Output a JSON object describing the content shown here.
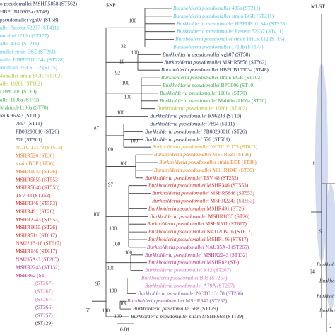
{
  "panels": {
    "snp": "SNP",
    "mlst": "MLST"
  },
  "scale_bar": "0.01",
  "left_leaves": [
    {
      "text": "o pseudomallei MSHR5858 (ST562)",
      "color": "#1f2d5a"
    },
    {
      "text": "HBPUB10303a (ST48)",
      "color": "#1f2d5a"
    },
    {
      "text": "pseudomallei vgh07 (ST58)",
      "color": "#1f2d5a"
    },
    {
      "text": "allei Pasteur 52237 (ST411)",
      "color": "#4fc0dc"
    },
    {
      "text": "omallei 1710b (ST177)",
      "color": "#4fc0dc"
    },
    {
      "text": "allei 406a (ST211)",
      "color": "#4fc0dc"
    },
    {
      "text": "mallei strain DSE (ST211)",
      "color": "#4fc0dc"
    },
    {
      "text": "nallei HBPUB10134a (ST228)",
      "color": "#4fc0dc"
    },
    {
      "text": "lei strain PHLS 112 (ST15)",
      "color": "#4fc0dc"
    },
    {
      "text": "domallei strain BGR (ST102)",
      "color": "#a8c030"
    },
    {
      "text": "allei 1026b (ST102)",
      "color": "#a8c030"
    },
    {
      "text": "i BPC006 (ST10)",
      "color": "#3aa84a"
    },
    {
      "text": "allei 1106a (ST70)",
      "color": "#3aa84a"
    },
    {
      "text": "Mahidol-1106a (ST70)",
      "color": "#3aa84a"
    },
    {
      "text": "lei K96243 (ST10)",
      "color": "#1f2d5a"
    },
    {
      "text": "7894 (ST11)",
      "color": "#1f2d5a"
    },
    {
      "text": "PB08298010 (ST26)",
      "color": "#1f2d5a"
    },
    {
      "text": "576 (ST501)",
      "color": "#1f2d5a"
    },
    {
      "text": "NCTC 13179 (ST613)",
      "color": "#d8b020"
    },
    {
      "text": "MSHR520 (ST36)",
      "color": "#e87a20"
    },
    {
      "text": "strain BDP (ST36)",
      "color": "#e87a20"
    },
    {
      "text": "MSHR1043 (ST36)",
      "color": "#e87a20"
    },
    {
      "text": "MSHR5855 (ST553)",
      "color": "#c8302a"
    },
    {
      "text": "MSHR5848 (ST553)",
      "color": "#c8302a"
    },
    {
      "text": "TSV 48 (ST252)",
      "color": "#c8302a"
    },
    {
      "text": "MSHR346 (ST553)",
      "color": "#c8302a"
    },
    {
      "text": "MSHR491 (ST26)",
      "color": "#c8302a"
    },
    {
      "text": "MSHR2243 (ST553)",
      "color": "#c8302a"
    },
    {
      "text": "MSHR1655 (ST26)",
      "color": "#c8302a"
    },
    {
      "text": "MSHR511 (ST617)",
      "color": "#c8302a"
    },
    {
      "text": "NAU20B-16 (ST617)",
      "color": "#c8302a"
    },
    {
      "text": "MSHR146 (ST617)",
      "color": "#c8302a"
    },
    {
      "text": "NAU35A-3 (ST265)",
      "color": "#b0308a"
    },
    {
      "text": "MSHR2243 (ST132)",
      "color": "#b0308a"
    },
    {
      "text": "MSHR62 (ST-)",
      "color": "#b0308a"
    },
    {
      "text": "(ST267)",
      "color": "#d070c0"
    },
    {
      "text": "(ST267)",
      "color": "#d070c0"
    },
    {
      "text": "(ST267)",
      "color": "#d070c0"
    },
    {
      "text": "(ST266)",
      "color": "#8a4aa0"
    },
    {
      "text": "(ST257)",
      "color": "#8a4aa0"
    },
    {
      "text": "(ST129)",
      "color": "#402030"
    }
  ],
  "snp_leaves": [
    {
      "genus": "Burkholderia pseudomallei",
      "strain": "406a (ST211)",
      "color": "#4fc0dc"
    },
    {
      "genus": "Burkholderia pseudomallei",
      "strain": "strain BGR (ST211)",
      "color": "#4fc0dc"
    },
    {
      "genus": "Burkholderia pseudomallei",
      "strain": "HBPUB10134a (ST228)",
      "color": "#4fc0dc"
    },
    {
      "genus": "Burkholderia pseudomallei",
      "strain": "Pasteur 52237 (ST411)",
      "color": "#4fc0dc"
    },
    {
      "genus": "Burkholderia pseudomallei",
      "strain": "strain PHLS 112 (ST15)",
      "color": "#4fc0dc"
    },
    {
      "genus": "Burkholderia pseudomallei",
      "strain": "1710b (ST177)",
      "color": "#4fc0dc"
    },
    {
      "genus": "Burkholderia pseudomallei",
      "strain": "vgh07 (ST58)",
      "color": "#1f2d5a"
    },
    {
      "genus": "Burkholderia pseudomallei",
      "strain": "MSHR5858 (ST562)",
      "color": "#1f2d5a"
    },
    {
      "genus": "Burkholderia pseudomallei",
      "strain": "HBPUB10303a (ST48)",
      "color": "#1f2d5a"
    },
    {
      "genus": "Burkholderia pseudomallei",
      "strain": "strain BGR (ST102)",
      "color": "#3aa84a"
    },
    {
      "genus": "Burkholderia pseudomallei",
      "strain": "BPC006 (ST10)",
      "color": "#3aa84a"
    },
    {
      "genus": "Burkholderia pseudomallei",
      "strain": "1106a (ST70)",
      "color": "#3aa84a"
    },
    {
      "genus": "Burkholderia pseudomallei",
      "strain": "Mahidol-1106a (ST70)",
      "color": "#3aa84a"
    },
    {
      "genus": "Burkholderia pseudomallei",
      "strain": "1026b (ST102)",
      "color": "#a8c030"
    },
    {
      "genus": "Burkholderia pseudomallei",
      "strain": "K96243 (ST10)",
      "color": "#1f2d5a"
    },
    {
      "genus": "Burkholderia pseudomallei",
      "strain": "7894 (ST11)",
      "color": "#1f2d5a"
    },
    {
      "genus": "Burkholderia pseudomallei",
      "strain": "PB08298010 (ST26)",
      "color": "#1f2d5a"
    },
    {
      "genus": "Burkholderia pseudomallei",
      "strain": "576 (ST501)",
      "color": "#1f2d5a"
    },
    {
      "genus": "Burkholderia pseudomallei",
      "strain": "NCTC 13179 (ST613)",
      "color": "#d8b020"
    },
    {
      "genus": "Burkholderia pseudomallei",
      "strain": "MSHR520 (ST36)",
      "color": "#e87a20"
    },
    {
      "genus": "Burkholderia pseudomallei",
      "strain": "strain BDP (ST36)",
      "color": "#e87a20"
    },
    {
      "genus": "Burkholderia pseudomallei",
      "strain": "MSHR1043 (ST36)",
      "color": "#e87a20"
    },
    {
      "genus": "Burkholderia pseudomallei",
      "strain": "TSV 48 (ST252)",
      "color": "#c8302a"
    },
    {
      "genus": "Burkholderia pseudomallei",
      "strain": "MSHR346 (ST553)",
      "color": "#c8302a"
    },
    {
      "genus": "Burkholderia pseudomallei",
      "strain": "MSHR5848 (ST553)",
      "color": "#c8302a"
    },
    {
      "genus": "Burkholderia pseudomallei",
      "strain": "MSHR2243 (ST553)",
      "color": "#c8302a"
    },
    {
      "genus": "Burkholderia pseudomallei",
      "strain": "MSHR491 (ST26)",
      "color": "#c8302a"
    },
    {
      "genus": "Burkholderia pseudomallei",
      "strain": "MSHR1655 (ST26)",
      "color": "#c8302a"
    },
    {
      "genus": "Burkholderia pseudomallei",
      "strain": "MSHR511 (ST617)",
      "color": "#c8302a"
    },
    {
      "genus": "Burkholderia pseudomallei",
      "strain": "NAU20B-16 (ST617)",
      "color": "#c8302a"
    },
    {
      "genus": "Burkholderia pseudomallei",
      "strain": "MSHR146 (ST617)",
      "color": "#c8302a"
    },
    {
      "genus": "Burkholderia pseudomallei",
      "strain": "NAU35A-3 (ST265)",
      "color": "#b0308a"
    },
    {
      "genus": "Burkholderia pseudomallei",
      "strain": "MSHR2243 (ST132)",
      "color": "#b0308a"
    },
    {
      "genus": "Burkholderia pseudomallei",
      "strain": "MSHR62 (ST-)",
      "color": "#b0308a"
    },
    {
      "genus": "Burkholderia pseudomallei",
      "strain": "K42 (ST267)",
      "color": "#d070c0"
    },
    {
      "genus": "Burkholderia pseudomallei",
      "strain": "B03 (ST267)",
      "color": "#d070c0"
    },
    {
      "genus": "Burkholderia pseudomallei",
      "strain": "A79A (ST267)",
      "color": "#d070c0"
    },
    {
      "genus": "Burkholderia pseudomallei",
      "strain": "NCTC 13178 (ST266)",
      "color": "#8a4aa0"
    },
    {
      "genus": "Burkholderia pseudomallei",
      "strain": "MSHR840 (ST257)",
      "color": "#8a4aa0"
    },
    {
      "genus": "Burkholderia pseudomallei",
      "strain": "668 (ST129)",
      "color": "#402030"
    },
    {
      "genus": "Burkholderia pseudomallei",
      "strain": "strain MSHR668 (ST129)",
      "color": "#402030"
    }
  ],
  "bootstrap": [
    "100",
    "32",
    "100",
    "10",
    "92",
    "100",
    "100",
    "100",
    "87",
    "100",
    "100",
    "100",
    "97",
    "100",
    "100",
    "100",
    "100",
    "100",
    "97",
    "100",
    "100",
    "100",
    "100",
    "55"
  ],
  "mlst_labels": [
    "1",
    "9",
    "64",
    "2"
  ],
  "mlst_leaves": [
    "Burkholderia",
    "Burkholderia",
    "Burkholderia",
    "Burkholderia"
  ]
}
